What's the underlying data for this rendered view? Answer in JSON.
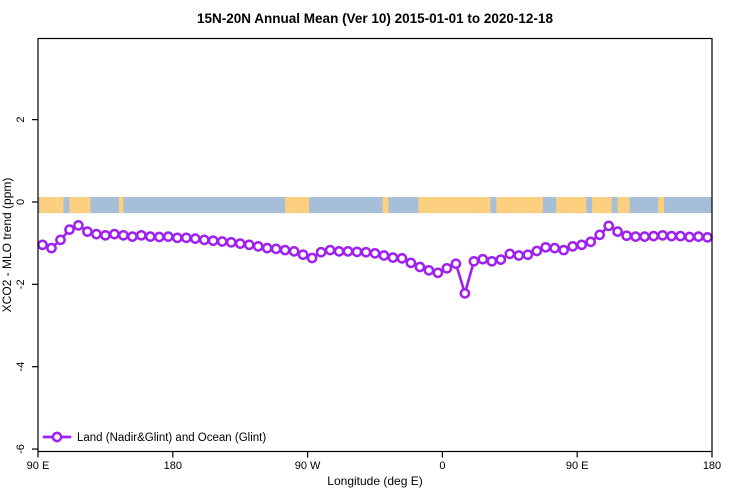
{
  "chart_data": {
    "type": "line",
    "title": "15N-20N Annual Mean (Ver 10)   2015-01-01 to 2020-12-18",
    "xlabel": "Longitude (deg E)",
    "ylabel": "XCO2 - MLO trend (ppm)",
    "grid": false,
    "x_axis": {
      "min": 90,
      "max": 540,
      "ticks": [
        {
          "value": 90,
          "label": "90 E"
        },
        {
          "value": 180,
          "label": "180"
        },
        {
          "value": 270,
          "label": "90 W"
        },
        {
          "value": 360,
          "label": "0"
        },
        {
          "value": 450,
          "label": "90 E"
        },
        {
          "value": 540,
          "label": "180"
        }
      ]
    },
    "y_axis": {
      "min": -6.06,
      "max": 3.97,
      "ticks": [
        {
          "value": 2,
          "label": "2"
        },
        {
          "value": 0,
          "label": "0"
        },
        {
          "value": -2,
          "label": "-2"
        },
        {
          "value": -4,
          "label": "-4"
        },
        {
          "value": -6,
          "label": "-6"
        }
      ]
    },
    "legend": {
      "label": "Land (Nadir&Glint) and Ocean (Glint)",
      "position": "bottom-left"
    },
    "land_ocean_band": {
      "description": "land/ocean mask strip drawn along the 0 ppm line",
      "y_top_value": 0.12,
      "y_bottom_value": -0.27,
      "ocean_color": "#a7bed9",
      "land_color": "#fcd07e",
      "land_segments_deg": [
        [
          91,
          107
        ],
        [
          111,
          125
        ],
        [
          144,
          147
        ],
        [
          255,
          271
        ],
        [
          320,
          324
        ],
        [
          344,
          392
        ],
        [
          396,
          427
        ],
        [
          436,
          456
        ],
        [
          460,
          473
        ],
        [
          477,
          485
        ],
        [
          504,
          508
        ]
      ]
    },
    "series": [
      {
        "name": "Land (Nadir&Glint) and Ocean (Glint)",
        "color": "#a020f0",
        "marker": "open-circle",
        "marker_fill": "#ffffff",
        "x": [
          93,
          99,
          105,
          111,
          117,
          123,
          129,
          135,
          141,
          147,
          153,
          159,
          165,
          171,
          177,
          183,
          189,
          195,
          201,
          207,
          213,
          219,
          225,
          231,
          237,
          243,
          249,
          255,
          261,
          267,
          273,
          279,
          285,
          291,
          297,
          303,
          309,
          315,
          321,
          327,
          333,
          339,
          345,
          351,
          357,
          363,
          369,
          375,
          381,
          387,
          393,
          399,
          405,
          411,
          417,
          423,
          429,
          435,
          441,
          447,
          453,
          459,
          465,
          471,
          477,
          483,
          489,
          495,
          501,
          507,
          513,
          519,
          525,
          531,
          537
        ],
        "y": [
          -1.04,
          -1.12,
          -0.92,
          -0.67,
          -0.57,
          -0.72,
          -0.78,
          -0.81,
          -0.78,
          -0.81,
          -0.84,
          -0.81,
          -0.84,
          -0.85,
          -0.84,
          -0.87,
          -0.87,
          -0.89,
          -0.92,
          -0.94,
          -0.96,
          -0.98,
          -1.01,
          -1.04,
          -1.08,
          -1.12,
          -1.14,
          -1.17,
          -1.2,
          -1.28,
          -1.36,
          -1.22,
          -1.17,
          -1.2,
          -1.2,
          -1.21,
          -1.22,
          -1.25,
          -1.3,
          -1.35,
          -1.37,
          -1.48,
          -1.58,
          -1.66,
          -1.72,
          -1.61,
          -1.5,
          -2.22,
          -1.44,
          -1.39,
          -1.44,
          -1.4,
          -1.26,
          -1.3,
          -1.28,
          -1.19,
          -1.1,
          -1.12,
          -1.17,
          -1.08,
          -1.04,
          -0.97,
          -0.8,
          -0.58,
          -0.72,
          -0.82,
          -0.84,
          -0.84,
          -0.83,
          -0.81,
          -0.83,
          -0.83,
          -0.85,
          -0.84,
          -0.86
        ]
      }
    ]
  }
}
